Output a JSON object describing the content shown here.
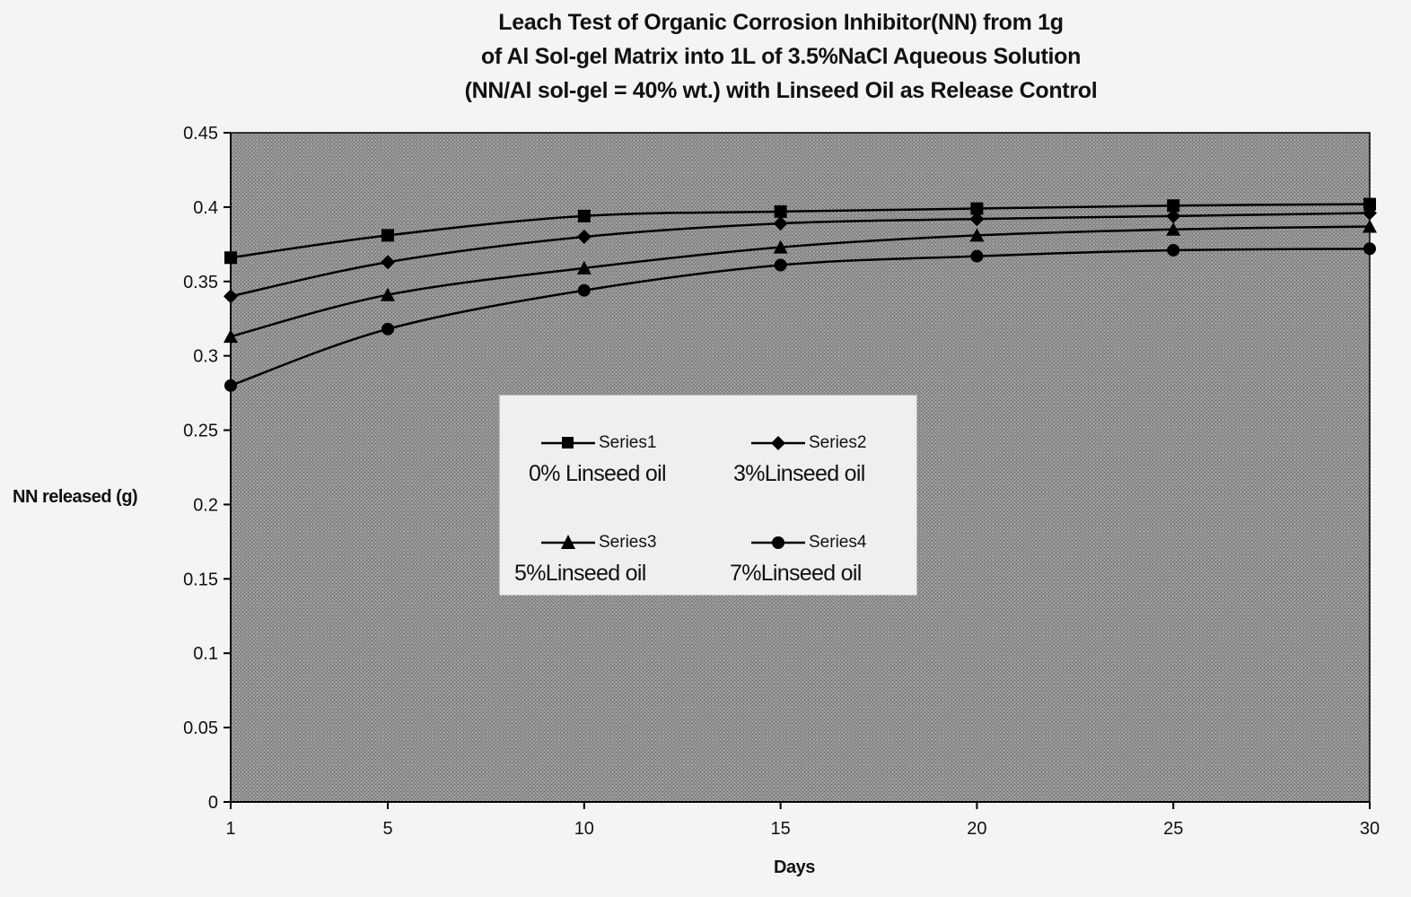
{
  "chart_data": {
    "type": "line",
    "title": [
      "Leach Test of Organic Corrosion Inhibitor(NN) from 1g",
      "of Al Sol-gel Matrix into 1L of 3.5%NaCl Aqueous Solution",
      "(NN/Al sol-gel = 40% wt.) with Linseed Oil as Release Control"
    ],
    "xlabel": "Days",
    "ylabel": "NN released (g)",
    "x": [
      1,
      5,
      10,
      15,
      20,
      25,
      30
    ],
    "x_ticks": [
      "1",
      "5",
      "10",
      "15",
      "20",
      "25",
      "30"
    ],
    "ylim": [
      0,
      0.45
    ],
    "y_ticks": [
      "0",
      "0.05",
      "0.1",
      "0.15",
      "0.2",
      "0.25",
      "0.3",
      "0.35",
      "0.4",
      "0.45"
    ],
    "y_tick_values": [
      0,
      0.05,
      0.1,
      0.15,
      0.2,
      0.25,
      0.3,
      0.35,
      0.4,
      0.45
    ],
    "grid": false,
    "legend_position": "center",
    "plot_background": "#8c8c8c",
    "line_color": "#000000",
    "series": [
      {
        "name": "Series1",
        "description": "0% Linseed oil",
        "marker": "square",
        "values": [
          0.366,
          0.381,
          0.394,
          0.397,
          0.399,
          0.401,
          0.402
        ]
      },
      {
        "name": "Series2",
        "description": "3%Linseed oil",
        "marker": "diamond",
        "values": [
          0.34,
          0.363,
          0.38,
          0.389,
          0.392,
          0.394,
          0.396
        ]
      },
      {
        "name": "Series3",
        "description": "5%Linseed oil",
        "marker": "triangle",
        "values": [
          0.313,
          0.341,
          0.359,
          0.373,
          0.381,
          0.385,
          0.387
        ]
      },
      {
        "name": "Series4",
        "description": "7%Linseed oil",
        "marker": "circle",
        "values": [
          0.28,
          0.318,
          0.344,
          0.361,
          0.367,
          0.371,
          0.372
        ]
      }
    ]
  }
}
